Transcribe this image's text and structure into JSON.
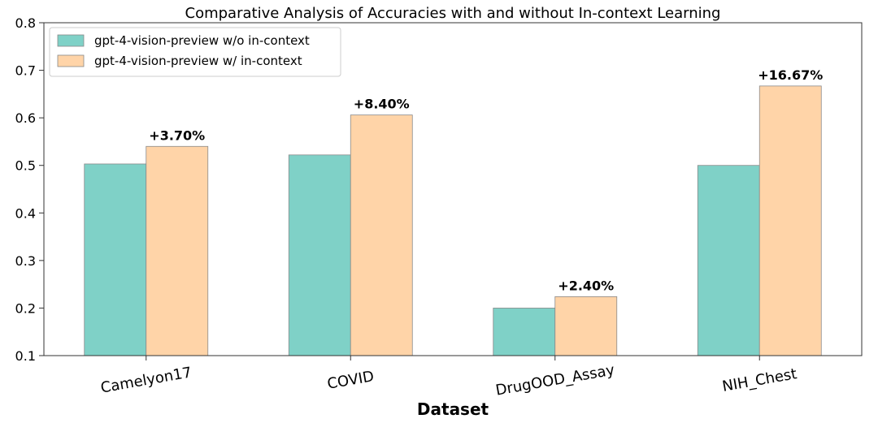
{
  "chart_data": {
    "type": "bar",
    "title": "Comparative Analysis of Accuracies with and without In-context Learning",
    "xlabel": "Dataset",
    "ylabel": "",
    "ylim": [
      0.1,
      0.8
    ],
    "yticks": [
      "0.1",
      "0.2",
      "0.3",
      "0.4",
      "0.5",
      "0.6",
      "0.7",
      "0.8"
    ],
    "categories": [
      "Camelyon17",
      "COVID",
      "DrugOOD_Assay",
      "NIH_Chest"
    ],
    "series": [
      {
        "name": "gpt-4-vision-preview w/o in-context",
        "color": "#7fd1c7",
        "values": [
          0.503,
          0.522,
          0.2,
          0.5
        ]
      },
      {
        "name": "gpt-4-vision-preview w/ in-context",
        "color": "#ffd4a8",
        "values": [
          0.54,
          0.606,
          0.224,
          0.667
        ]
      }
    ],
    "annotations": [
      "+3.70%",
      "+8.40%",
      "+2.40%",
      "+16.67%"
    ],
    "legend": "top-left",
    "grid": false
  }
}
